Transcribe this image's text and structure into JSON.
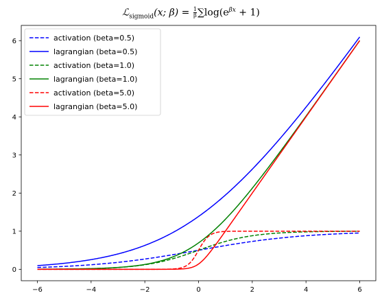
{
  "chart_data": {
    "type": "line",
    "title": {
      "lhs_symbol": "ℒ",
      "lhs_sub": "sigmoid",
      "lhs_args": "(x; β) = ",
      "frac_num": "1",
      "frac_den": "β",
      "rhs": "∑log(e",
      "rhs_sup": "βx",
      "rhs_tail": " + 1)"
    },
    "xlabel": "",
    "ylabel": "",
    "xlim": [
      -6.6,
      6.6
    ],
    "ylim": [
      -0.3,
      6.4
    ],
    "xticks": [
      -6,
      -4,
      -2,
      0,
      2,
      4,
      6
    ],
    "yticks": [
      0,
      1,
      2,
      3,
      4,
      5,
      6
    ],
    "x_domain": [
      -6,
      6
    ],
    "grid": false,
    "legend_position": "upper-left",
    "series": [
      {
        "name": "activation (beta=0.5)",
        "beta": 0.5,
        "kind": "activation",
        "color": "#0000ff",
        "dashed": true
      },
      {
        "name": "lagrangian (beta=0.5)",
        "beta": 0.5,
        "kind": "lagrangian",
        "color": "#0000ff",
        "dashed": false
      },
      {
        "name": "activation (beta=1.0)",
        "beta": 1.0,
        "kind": "activation",
        "color": "#008000",
        "dashed": true
      },
      {
        "name": "lagrangian (beta=1.0)",
        "beta": 1.0,
        "kind": "lagrangian",
        "color": "#008000",
        "dashed": false
      },
      {
        "name": "activation (beta=5.0)",
        "beta": 5.0,
        "kind": "activation",
        "color": "#ff0000",
        "dashed": true
      },
      {
        "name": "lagrangian (beta=5.0)",
        "beta": 5.0,
        "kind": "lagrangian",
        "color": "#ff0000",
        "dashed": false
      }
    ]
  }
}
